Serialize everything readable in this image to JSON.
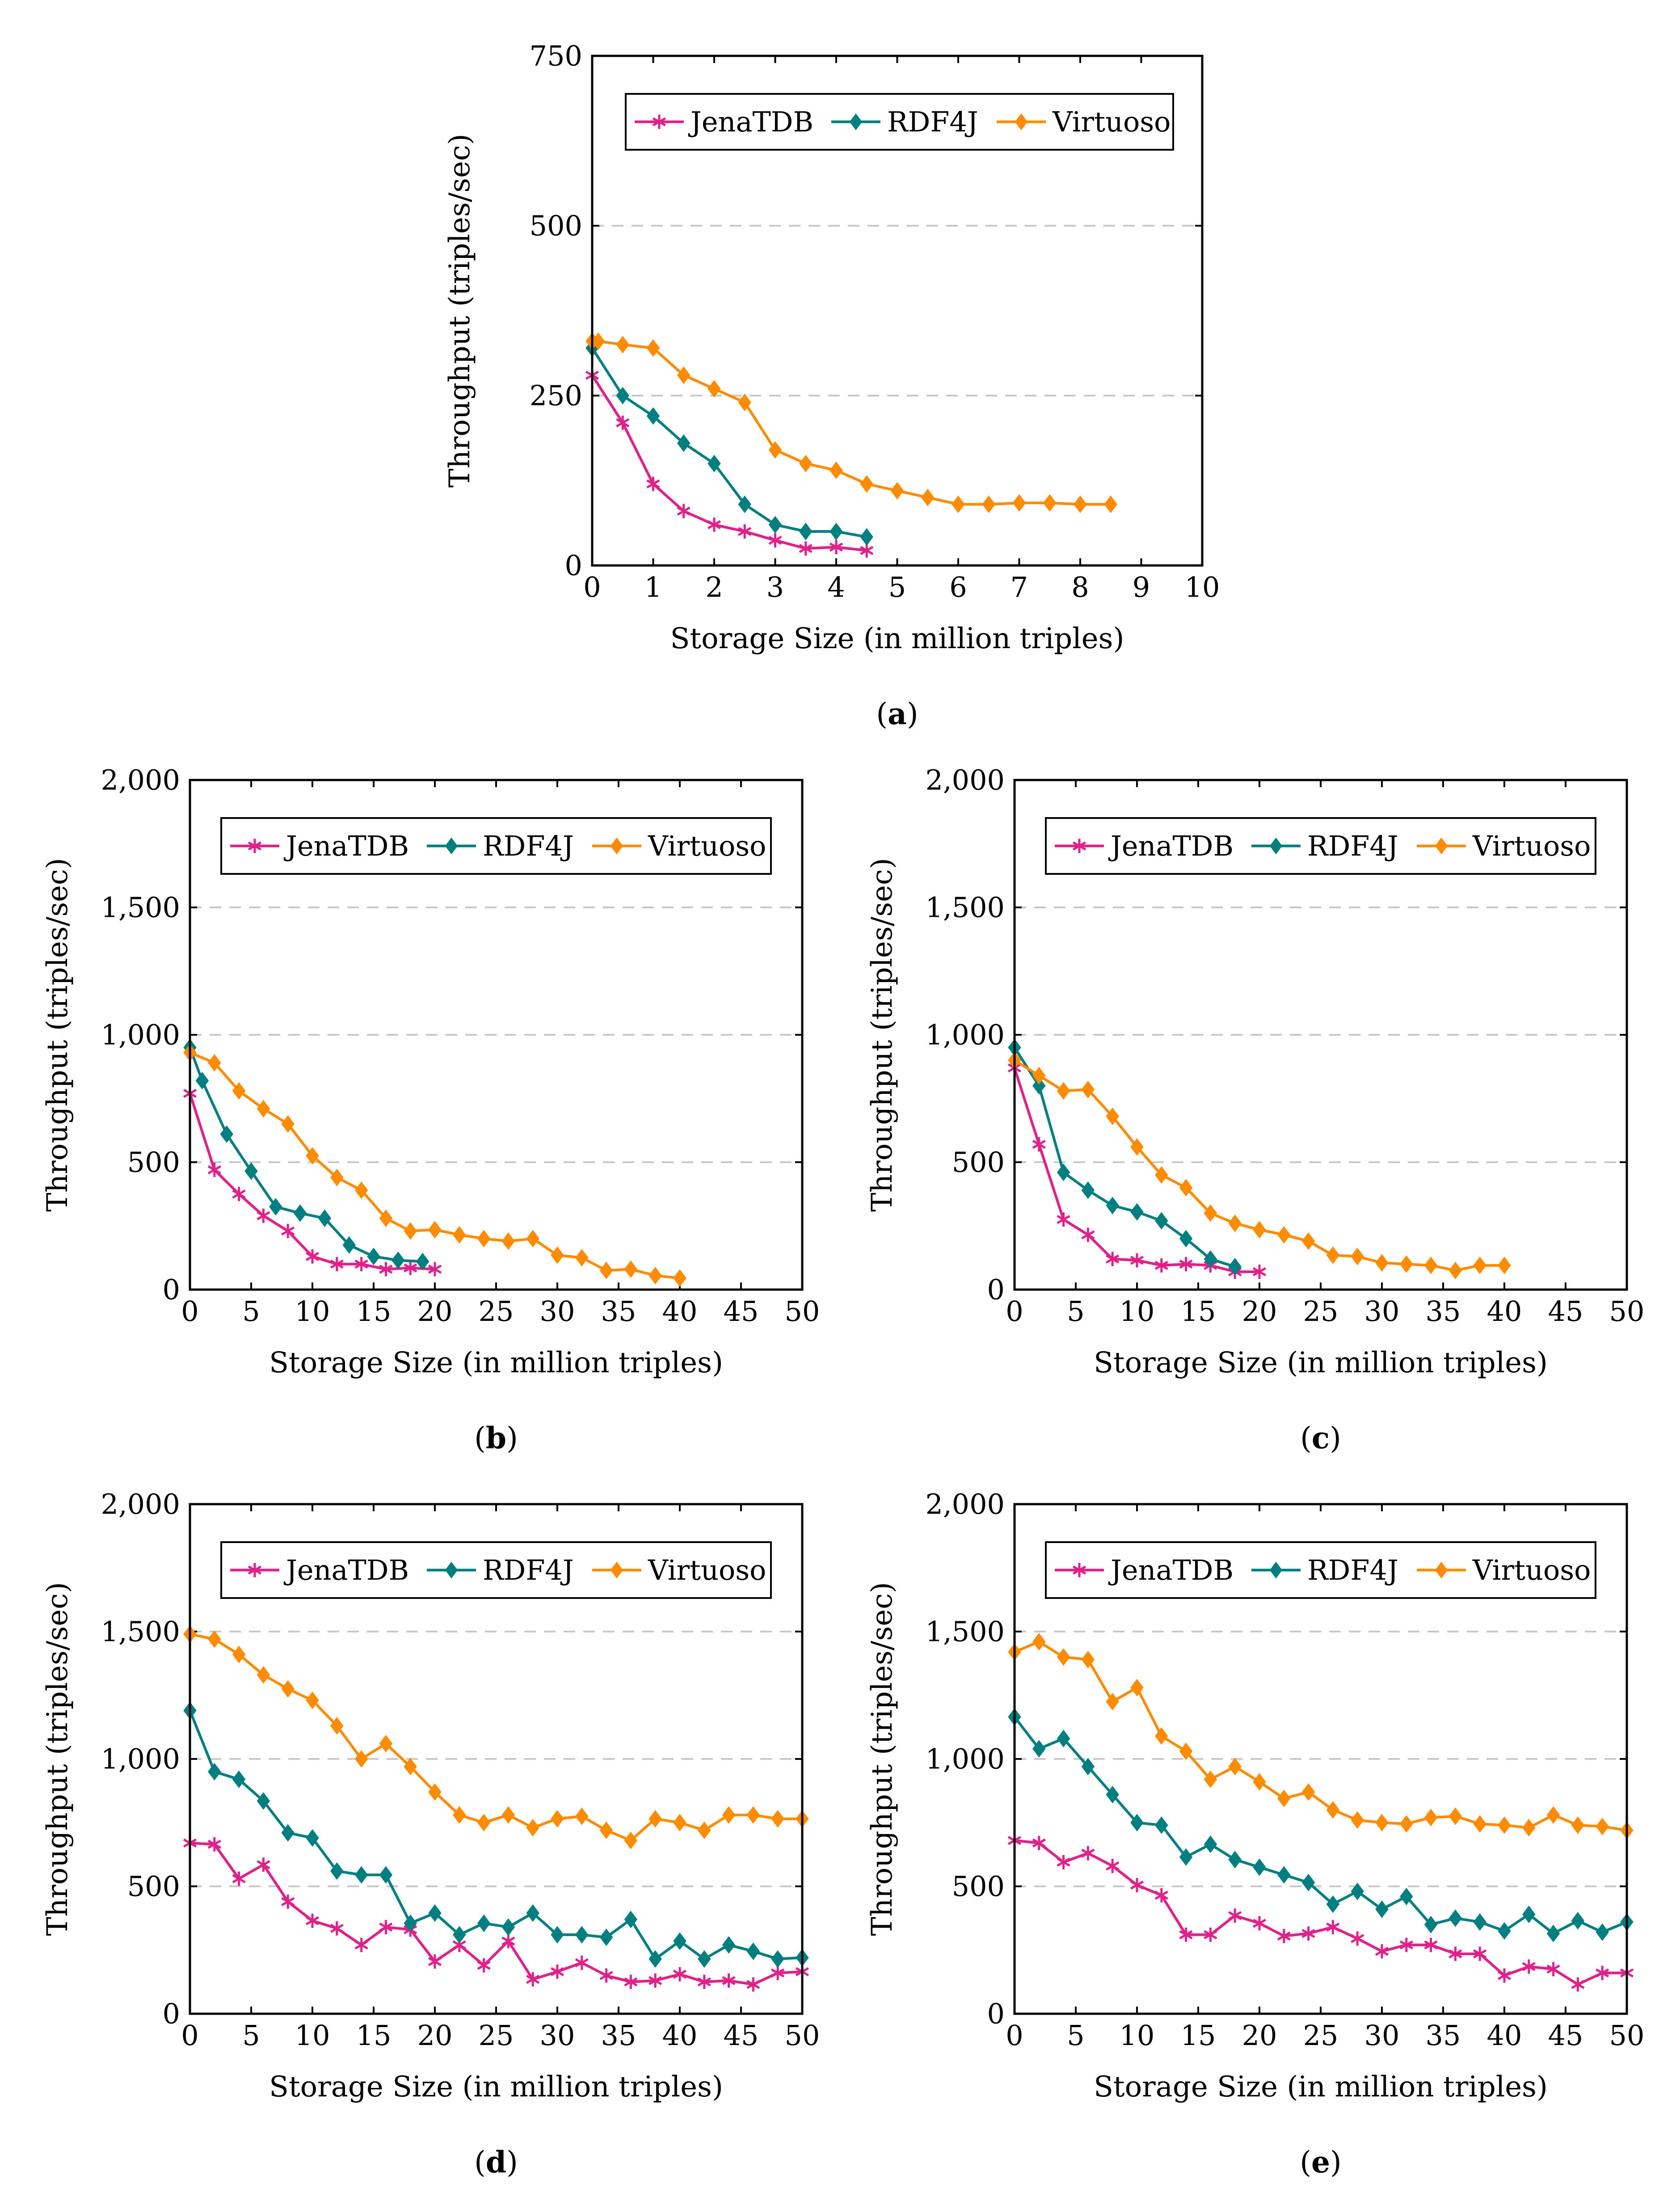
{
  "colors": {
    "JenaTDB": "#e0218a",
    "RDF4J": "#007f80",
    "Virtuoso": "#ff8c00",
    "grid": "#c8c8c8"
  },
  "chart_data": [
    {
      "panel": "a",
      "caption_letter": "a",
      "type": "line",
      "xlabel": "Storage Size (in million triples)",
      "ylabel": "Throughput (triples/sec)",
      "xlim": [
        0,
        10
      ],
      "ylim": [
        0,
        750
      ],
      "xticks": [
        0,
        1,
        2,
        3,
        4,
        5,
        6,
        7,
        8,
        9,
        10
      ],
      "xtick_labels": [
        "0",
        "1",
        "2",
        "3",
        "4",
        "5",
        "6",
        "7",
        "8",
        "9",
        "10"
      ],
      "yticks": [
        0,
        250,
        500,
        750
      ],
      "ytick_labels": [
        "0",
        "250",
        "500",
        "750"
      ],
      "grid": "horizontal-dashed",
      "legend": [
        "JenaTDB",
        "RDF4J",
        "Virtuoso"
      ],
      "series": [
        {
          "name": "JenaTDB",
          "marker": "star",
          "x": [
            0,
            0.5,
            1,
            1.5,
            2,
            2.5,
            3,
            3.5,
            4,
            4.5
          ],
          "y": [
            280,
            210,
            120,
            80,
            60,
            50,
            37,
            25,
            27,
            22
          ]
        },
        {
          "name": "RDF4J",
          "marker": "diamond",
          "x": [
            0,
            0.5,
            1,
            1.5,
            2,
            2.5,
            3,
            3.5,
            4,
            4.5
          ],
          "y": [
            320,
            250,
            220,
            180,
            150,
            90,
            60,
            50,
            50,
            42
          ]
        },
        {
          "name": "Virtuoso",
          "marker": "diamond",
          "x": [
            0,
            0.1,
            0.5,
            1,
            1.5,
            2,
            2.5,
            3,
            3.5,
            4,
            4.5,
            5,
            5.5,
            6,
            6.5,
            7,
            7.5,
            8,
            8.5
          ],
          "y": [
            330,
            330,
            325,
            320,
            280,
            260,
            240,
            170,
            150,
            140,
            120,
            110,
            100,
            90,
            90,
            92,
            92,
            90,
            90
          ]
        }
      ]
    },
    {
      "panel": "b",
      "caption_letter": "b",
      "type": "line",
      "xlabel": "Storage Size (in million triples)",
      "ylabel": "Throughput (triples/sec)",
      "xlim": [
        0,
        50
      ],
      "ylim": [
        0,
        2000
      ],
      "xticks": [
        0,
        5,
        10,
        15,
        20,
        25,
        30,
        35,
        40,
        45,
        50
      ],
      "xtick_labels": [
        "0",
        "5",
        "10",
        "15",
        "20",
        "25",
        "30",
        "35",
        "40",
        "45",
        "50"
      ],
      "yticks": [
        0,
        500,
        1000,
        1500,
        2000
      ],
      "ytick_labels": [
        "0",
        "500",
        "1,000",
        "1,500",
        "2,000"
      ],
      "grid": "horizontal-dashed",
      "legend": [
        "JenaTDB",
        "RDF4J",
        "Virtuoso"
      ],
      "series": [
        {
          "name": "JenaTDB",
          "marker": "star",
          "x": [
            0,
            2,
            4,
            6,
            8,
            10,
            12,
            14,
            16,
            18,
            20
          ],
          "y": [
            770,
            470,
            375,
            290,
            230,
            130,
            100,
            100,
            80,
            85,
            80
          ]
        },
        {
          "name": "RDF4J",
          "marker": "diamond",
          "x": [
            0,
            1,
            3,
            5,
            7,
            9,
            11,
            13,
            15,
            17,
            19
          ],
          "y": [
            950,
            820,
            610,
            465,
            325,
            300,
            280,
            175,
            130,
            115,
            110
          ]
        },
        {
          "name": "Virtuoso",
          "marker": "diamond",
          "x": [
            0,
            2,
            4,
            6,
            8,
            10,
            12,
            14,
            16,
            18,
            20,
            22,
            24,
            26,
            28,
            30,
            32,
            34,
            36,
            38,
            40
          ],
          "y": [
            930,
            890,
            780,
            710,
            650,
            525,
            440,
            390,
            280,
            230,
            235,
            215,
            200,
            190,
            200,
            135,
            125,
            75,
            80,
            55,
            45
          ]
        }
      ]
    },
    {
      "panel": "c",
      "caption_letter": "c",
      "type": "line",
      "xlabel": "Storage Size (in million triples)",
      "ylabel": "Throughput (triples/sec)",
      "xlim": [
        0,
        50
      ],
      "ylim": [
        0,
        2000
      ],
      "xticks": [
        0,
        5,
        10,
        15,
        20,
        25,
        30,
        35,
        40,
        45,
        50
      ],
      "xtick_labels": [
        "0",
        "5",
        "10",
        "15",
        "20",
        "25",
        "30",
        "35",
        "40",
        "45",
        "50"
      ],
      "yticks": [
        0,
        500,
        1000,
        1500,
        2000
      ],
      "ytick_labels": [
        "0",
        "500",
        "1,000",
        "1,500",
        "2,000"
      ],
      "grid": "horizontal-dashed",
      "legend": [
        "JenaTDB",
        "RDF4J",
        "Virtuoso"
      ],
      "series": [
        {
          "name": "JenaTDB",
          "marker": "star",
          "x": [
            0,
            2,
            4,
            6,
            8,
            10,
            12,
            14,
            16,
            18,
            20
          ],
          "y": [
            870,
            570,
            275,
            215,
            120,
            115,
            95,
            100,
            95,
            70,
            70
          ]
        },
        {
          "name": "RDF4J",
          "marker": "diamond",
          "x": [
            0,
            2,
            4,
            6,
            8,
            10,
            12,
            14,
            16,
            18
          ],
          "y": [
            950,
            800,
            460,
            390,
            330,
            305,
            270,
            200,
            120,
            90
          ]
        },
        {
          "name": "Virtuoso",
          "marker": "diamond",
          "x": [
            0,
            2,
            4,
            6,
            8,
            10,
            12,
            14,
            16,
            18,
            20,
            22,
            24,
            26,
            28,
            30,
            32,
            34,
            36,
            38,
            40
          ],
          "y": [
            900,
            840,
            780,
            785,
            680,
            560,
            450,
            400,
            300,
            260,
            235,
            215,
            190,
            135,
            130,
            105,
            100,
            95,
            75,
            95,
            95
          ]
        }
      ]
    },
    {
      "panel": "d",
      "caption_letter": "d",
      "type": "line",
      "xlabel": "Storage Size (in million triples)",
      "ylabel": "Throughput (triples/sec)",
      "xlim": [
        0,
        50
      ],
      "ylim": [
        0,
        2000
      ],
      "xticks": [
        0,
        5,
        10,
        15,
        20,
        25,
        30,
        35,
        40,
        45,
        50
      ],
      "xtick_labels": [
        "0",
        "5",
        "10",
        "15",
        "20",
        "25",
        "30",
        "35",
        "40",
        "45",
        "50"
      ],
      "yticks": [
        0,
        500,
        1000,
        1500,
        2000
      ],
      "ytick_labels": [
        "0",
        "500",
        "1,000",
        "1,500",
        "2,000"
      ],
      "grid": "horizontal-dashed",
      "legend": [
        "JenaTDB",
        "RDF4J",
        "Virtuoso"
      ],
      "series": [
        {
          "name": "JenaTDB",
          "marker": "star",
          "x": [
            0,
            2,
            4,
            6,
            8,
            10,
            12,
            14,
            16,
            18,
            20,
            22,
            24,
            26,
            28,
            30,
            32,
            34,
            36,
            38,
            40,
            42,
            44,
            46,
            48,
            50
          ],
          "y": [
            670,
            665,
            530,
            585,
            440,
            365,
            335,
            270,
            340,
            330,
            205,
            270,
            190,
            285,
            135,
            165,
            200,
            150,
            125,
            130,
            155,
            125,
            130,
            115,
            160,
            165
          ]
        },
        {
          "name": "RDF4J",
          "marker": "diamond",
          "x": [
            0,
            2,
            4,
            6,
            8,
            10,
            12,
            14,
            16,
            18,
            20,
            22,
            24,
            26,
            28,
            30,
            32,
            34,
            36,
            38,
            40,
            42,
            44,
            46,
            48,
            50
          ],
          "y": [
            1190,
            950,
            920,
            835,
            710,
            690,
            560,
            545,
            545,
            355,
            395,
            310,
            355,
            340,
            395,
            310,
            310,
            300,
            370,
            215,
            285,
            215,
            270,
            245,
            215,
            220
          ]
        },
        {
          "name": "Virtuoso",
          "marker": "diamond",
          "x": [
            0,
            2,
            4,
            6,
            8,
            10,
            12,
            14,
            16,
            18,
            20,
            22,
            24,
            26,
            28,
            30,
            32,
            34,
            36,
            38,
            40,
            42,
            44,
            46,
            48,
            50
          ],
          "y": [
            1490,
            1470,
            1410,
            1330,
            1275,
            1230,
            1130,
            1000,
            1060,
            970,
            870,
            780,
            750,
            780,
            730,
            765,
            775,
            720,
            680,
            765,
            750,
            720,
            780,
            780,
            765,
            765
          ]
        }
      ]
    },
    {
      "panel": "e",
      "caption_letter": "e",
      "type": "line",
      "xlabel": "Storage Size (in million triples)",
      "ylabel": "Throughput (triples/sec)",
      "xlim": [
        0,
        50
      ],
      "ylim": [
        0,
        2000
      ],
      "xticks": [
        0,
        5,
        10,
        15,
        20,
        25,
        30,
        35,
        40,
        45,
        50
      ],
      "xtick_labels": [
        "0",
        "5",
        "10",
        "15",
        "20",
        "25",
        "30",
        "35",
        "40",
        "45",
        "50"
      ],
      "yticks": [
        0,
        500,
        1000,
        1500,
        2000
      ],
      "ytick_labels": [
        "0",
        "500",
        "1,000",
        "1,500",
        "2,000"
      ],
      "grid": "horizontal-dashed",
      "legend": [
        "JenaTDB",
        "RDF4J",
        "Virtuoso"
      ],
      "series": [
        {
          "name": "JenaTDB",
          "marker": "star",
          "x": [
            0,
            2,
            4,
            6,
            8,
            10,
            12,
            14,
            16,
            18,
            20,
            22,
            24,
            26,
            28,
            30,
            32,
            34,
            36,
            38,
            40,
            42,
            44,
            46,
            48,
            50
          ],
          "y": [
            680,
            670,
            595,
            630,
            580,
            505,
            465,
            310,
            310,
            385,
            355,
            305,
            315,
            340,
            295,
            245,
            270,
            270,
            235,
            235,
            150,
            185,
            175,
            115,
            160,
            160
          ]
        },
        {
          "name": "RDF4J",
          "marker": "diamond",
          "x": [
            0,
            2,
            4,
            6,
            8,
            10,
            12,
            14,
            16,
            18,
            20,
            22,
            24,
            26,
            28,
            30,
            32,
            34,
            36,
            38,
            40,
            42,
            44,
            46,
            48,
            50
          ],
          "y": [
            1165,
            1040,
            1080,
            970,
            860,
            750,
            740,
            615,
            665,
            605,
            575,
            545,
            515,
            430,
            480,
            410,
            460,
            350,
            375,
            360,
            325,
            390,
            315,
            365,
            320,
            360
          ]
        },
        {
          "name": "Virtuoso",
          "marker": "diamond",
          "x": [
            0,
            2,
            4,
            6,
            8,
            10,
            12,
            14,
            16,
            18,
            20,
            22,
            24,
            26,
            28,
            30,
            32,
            34,
            36,
            38,
            40,
            42,
            44,
            46,
            48,
            50
          ],
          "y": [
            1420,
            1460,
            1400,
            1390,
            1225,
            1280,
            1090,
            1030,
            920,
            970,
            910,
            845,
            870,
            800,
            760,
            750,
            745,
            770,
            775,
            745,
            740,
            730,
            780,
            740,
            735,
            720
          ]
        }
      ]
    }
  ]
}
